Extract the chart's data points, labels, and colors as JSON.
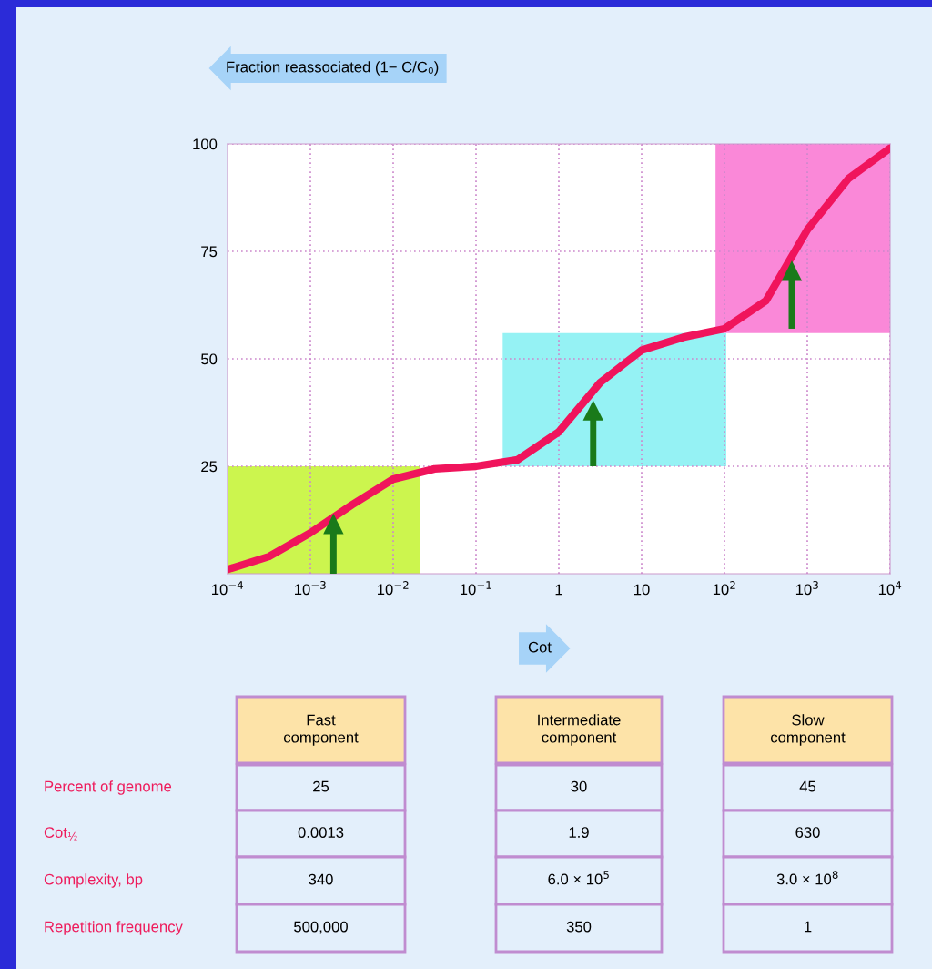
{
  "chart_data": {
    "type": "line",
    "xlabel": "Cot",
    "ylabel": "Fraction reassociated (1− C/C₀)",
    "log": "x",
    "grid": true,
    "xlim": [
      0.0001,
      10000
    ],
    "ylim": [
      0,
      100
    ],
    "xticks": [
      {
        "value": 0.0001,
        "label": "10$^{−4}$"
      },
      {
        "value": 0.001,
        "label": "10$^{−3}$"
      },
      {
        "value": 0.01,
        "label": "10$^{−2}$"
      },
      {
        "value": 0.1,
        "label": "10$^{−1}$"
      },
      1,
      10,
      {
        "value": 100,
        "label": "10$^{2}$"
      },
      {
        "value": 1000,
        "label": "10$^{3}$"
      },
      {
        "value": 10000,
        "label": "10$^{4}$"
      }
    ],
    "yticks": [
      25,
      50,
      75,
      100
    ],
    "x": [
      0.0001,
      0.000316,
      0.001,
      0.00316,
      0.01,
      0.0316,
      0.1,
      0.316,
      1,
      3.16,
      10,
      31.6,
      100,
      316,
      1000,
      3160,
      10000
    ],
    "series": [
      {
        "type": "area",
        "x": [
          0.0001,
          0.021
        ],
        "values": [
          null,
          null
        ],
        "lower": [
          0,
          0
        ],
        "upper": [
          25,
          25
        ],
        "color": "#ccf54e"
      },
      {
        "type": "area",
        "x": [
          0.21,
          105
        ],
        "values": [
          null,
          null
        ],
        "lower": [
          25,
          25
        ],
        "upper": [
          56,
          56
        ],
        "color": "#95f2f4"
      },
      {
        "type": "area",
        "x": [
          78,
          10000
        ],
        "values": [
          null,
          null
        ],
        "lower": [
          56,
          56
        ],
        "upper": [
          100,
          100
        ],
        "color": "#fa88d8"
      },
      {
        "type": "scatter",
        "marker": "triangle",
        "color": "#1a7a1a",
        "x": [
          0.0019,
          2.6,
          650
        ],
        "values": [
          11.6,
          38,
          70.5
        ],
        "errors": [
          [
            0,
            11.6
          ],
          [
            25,
            38
          ],
          [
            57,
            70.5
          ]
        ]
      },
      {
        "color": "#f0145c",
        "values": [
          1,
          4,
          9.5,
          16,
          22,
          24.4,
          25,
          26.5,
          33,
          44.5,
          52,
          55,
          57,
          63.5,
          80,
          92,
          99
        ]
      }
    ],
    "annotations": [
      "Fast\ncomponent",
      "Intermediate\ncomponent",
      "Slow\ncomponent",
      "Percent of genome",
      "25",
      "30",
      "45",
      "Cot$_{½}$",
      "0.0013",
      "1.9",
      "630",
      "Complexity, bp",
      "340",
      "6.0 × 10$^{5}$",
      "3.0 × 10$^{8}$",
      "Repetition frequency",
      "500,000",
      "350",
      "1"
    ]
  }
}
